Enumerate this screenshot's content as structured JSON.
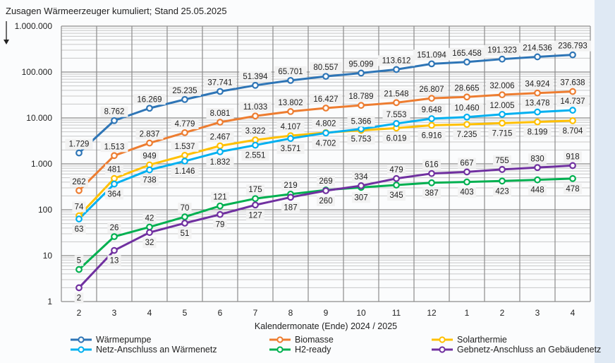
{
  "chart_data": {
    "type": "line",
    "title": "Zusagen Wärmeerzeuger kumuliert; Stand  25.05.2025",
    "xlabel": "Kalendermonate (Ende) 2024 / 2025",
    "ylabel": "",
    "yscale": "log",
    "ylim": [
      1,
      1000000
    ],
    "yticks": [
      "1",
      "10",
      "100",
      "1.000",
      "10.000",
      "100.000",
      "1.000.000"
    ],
    "categories": [
      "2",
      "3",
      "4",
      "5",
      "6",
      "7",
      "8",
      "9",
      "10",
      "11",
      "12",
      "1",
      "2",
      "3",
      "4"
    ],
    "grid": true,
    "legend_position": "bottom",
    "series": [
      {
        "name": "Wärmepumpe",
        "color": "#2e75b6",
        "values": [
          1729,
          8762,
          16269,
          25235,
          37741,
          51394,
          65701,
          80557,
          95099,
          113612,
          151094,
          165458,
          191323,
          214536,
          236793
        ]
      },
      {
        "name": "Biomasse",
        "color": "#ed7d31",
        "values": [
          262,
          1513,
          2837,
          4779,
          8081,
          11033,
          13802,
          16427,
          18789,
          21548,
          26807,
          28665,
          32006,
          34924,
          37638
        ]
      },
      {
        "name": "Solarthermie",
        "color": "#ffc000",
        "values": [
          74,
          481,
          949,
          1537,
          2467,
          3322,
          4107,
          4802,
          5366,
          6019,
          6916,
          7235,
          7715,
          8199,
          8704
        ]
      },
      {
        "name": "Netz-Anschluss an Wärmenetz",
        "color": "#00b0f0",
        "values": [
          63,
          364,
          738,
          1146,
          1832,
          2551,
          3571,
          4702,
          5753,
          7553,
          9648,
          10460,
          12005,
          13478,
          14737
        ]
      },
      {
        "name": "H2-ready",
        "color": "#00b050",
        "values": [
          5,
          26,
          42,
          70,
          121,
          175,
          219,
          269,
          307,
          345,
          387,
          403,
          423,
          448,
          478
        ]
      },
      {
        "name": "Gebnetz-Anschluss an Gebäudenetz",
        "color": "#7030a0",
        "values": [
          2,
          13,
          32,
          51,
          79,
          127,
          187,
          260,
          334,
          479,
          616,
          667,
          755,
          830,
          918
        ]
      }
    ]
  }
}
